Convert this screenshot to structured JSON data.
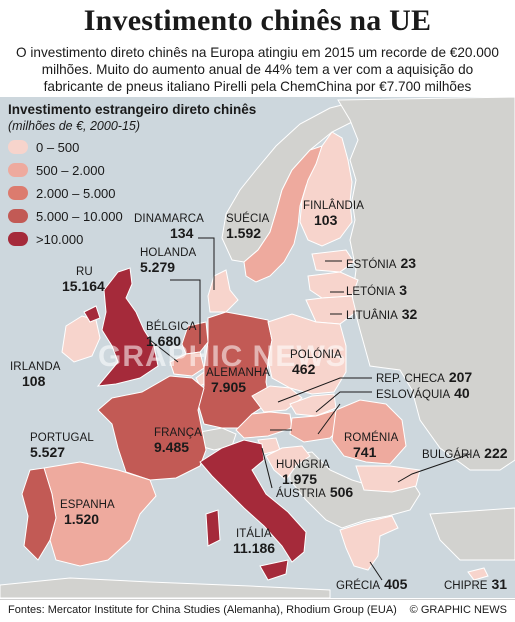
{
  "title": "Investimento chinês na UE",
  "lede": "O investimento direto chinês na Europa atingiu em 2015 um recorde de €20.000 milhões. Muito do aumento anual de 44% tem a ver com a aquisição do fabricante de pneus italiano Pirelli pela ChemChina por €7.700 milhões",
  "legend": {
    "title": "Investimento estrangeiro direto chinês",
    "subtitle": "(milhões de €, 2000-15)",
    "items": [
      {
        "label": "0 – 500",
        "color": "#f7d4cc"
      },
      {
        "label": "500 – 2.000",
        "color": "#eeaa9e"
      },
      {
        "label": "2.000 – 5.000",
        "color": "#dc7b6e"
      },
      {
        "label": "5.000 – 10.000",
        "color": "#c25a55"
      },
      {
        "label": ">10.000",
        "color": "#a52a3a"
      }
    ]
  },
  "countries": {
    "dinamarca": {
      "name": "DINAMARCA",
      "value": "134"
    },
    "suecia": {
      "name": "SUÉCIA",
      "value": "1.592"
    },
    "finlandia": {
      "name": "FINLÂNDIA",
      "value": "103"
    },
    "holanda": {
      "name": "HOLANDA",
      "value": "5.279"
    },
    "ru": {
      "name": "RU",
      "value": "15.164"
    },
    "belgica": {
      "name": "BÉLGICA",
      "value": "1.680"
    },
    "irlanda": {
      "name": "IRLANDA",
      "value": "108"
    },
    "alemanha": {
      "name": "ALEMANHA",
      "value": "7.905"
    },
    "polonia": {
      "name": "POLÓNIA",
      "value": "462"
    },
    "estonia": {
      "name": "ESTÓNIA",
      "value": "23"
    },
    "letonia": {
      "name": "LETÓNIA",
      "value": "3"
    },
    "lituania": {
      "name": "LITUÂNIA",
      "value": "32"
    },
    "repcheca": {
      "name": "REP. CHECA",
      "value": "207"
    },
    "eslovaquia": {
      "name": "ESLOVÁQUIA",
      "value": "40"
    },
    "franca": {
      "name": "FRANÇA",
      "value": "9.485"
    },
    "portugal": {
      "name": "PORTUGAL",
      "value": "5.527"
    },
    "romenia": {
      "name": "ROMÉNIA",
      "value": "741"
    },
    "bulgaria": {
      "name": "BULGÁRIA",
      "value": "222"
    },
    "hungria": {
      "name": "HUNGRIA",
      "value": "1.975"
    },
    "austria": {
      "name": "ÁUSTRIA",
      "value": "506"
    },
    "espanha": {
      "name": "ESPANHA",
      "value": "1.520"
    },
    "italia": {
      "name": "ITÁLIA",
      "value": "11.186"
    },
    "grecia": {
      "name": "GRÉCIA",
      "value": "405"
    },
    "chipre": {
      "name": "CHIPRE",
      "value": "31"
    }
  },
  "watermark": "GRAPHIC NEWS",
  "source": "Fontes: Mercator Institute for China Studies (Alemanha), Rhodium Group (EUA)",
  "credit": "© GRAPHIC NEWS",
  "colors": {
    "sea": "#cdd7dd",
    "non_eu": "#d2d2cf",
    "border": "#ffffff"
  }
}
